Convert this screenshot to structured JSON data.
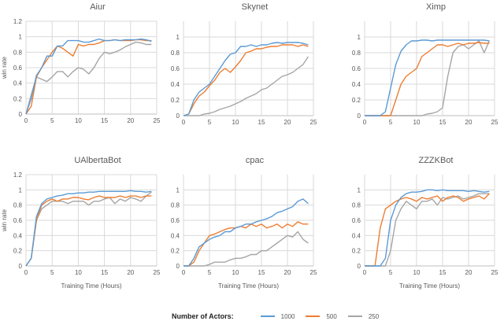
{
  "legend": {
    "title": "Number of Actors:",
    "items": [
      {
        "label": "1000",
        "color": "#5b9bd5"
      },
      {
        "label": "500",
        "color": "#ed7d31"
      },
      {
        "label": "250",
        "color": "#a5a5a5"
      }
    ]
  },
  "chart_data": [
    {
      "type": "line",
      "title": "Aiur",
      "xlabel": "",
      "ylabel": "win rate",
      "xlim": [
        0,
        25
      ],
      "ylim": [
        0,
        1.2
      ],
      "xticks": [
        0,
        5,
        10,
        15,
        20,
        25
      ],
      "yticks": [
        "0",
        "0.2",
        "0.4",
        "0.6",
        "0.8",
        "1",
        "1.2"
      ],
      "x": [
        0,
        1,
        2,
        3,
        4,
        5,
        6,
        7,
        8,
        9,
        10,
        11,
        12,
        13,
        14,
        15,
        16,
        17,
        18,
        19,
        20,
        21,
        22,
        23,
        24
      ],
      "series": [
        {
          "name": "1000",
          "values": [
            0,
            0.2,
            0.5,
            0.6,
            0.75,
            0.75,
            0.88,
            0.88,
            0.95,
            0.95,
            0.95,
            0.93,
            0.93,
            0.95,
            0.97,
            0.95,
            0.95,
            0.96,
            0.95,
            0.96,
            0.96,
            0.96,
            0.97,
            0.96,
            0.94
          ]
        },
        {
          "name": "500",
          "values": [
            0,
            0.1,
            0.48,
            0.6,
            0.7,
            0.8,
            0.88,
            0.85,
            0.8,
            0.75,
            0.9,
            0.88,
            0.9,
            0.9,
            0.92,
            0.95,
            0.95,
            0.96,
            0.95,
            0.95,
            0.95,
            0.96,
            0.96,
            0.95,
            0.95
          ]
        },
        {
          "name": "250",
          "values": [
            0,
            0.25,
            0.48,
            0.45,
            0.42,
            0.48,
            0.55,
            0.55,
            0.48,
            0.55,
            0.6,
            0.58,
            0.52,
            0.6,
            0.72,
            0.8,
            0.78,
            0.8,
            0.83,
            0.87,
            0.9,
            0.93,
            0.92,
            0.9,
            0.9
          ]
        }
      ]
    },
    {
      "type": "line",
      "title": "Skynet",
      "xlabel": "",
      "ylabel": "",
      "xlim": [
        0,
        25
      ],
      "ylim": [
        0,
        1.2
      ],
      "xticks": [
        0,
        5,
        10,
        15,
        20,
        25
      ],
      "yticks": [
        "0",
        "0.2",
        "0.4",
        "0.6",
        "0.8",
        "1"
      ],
      "x": [
        0,
        1,
        2,
        3,
        4,
        5,
        6,
        7,
        8,
        9,
        10,
        11,
        12,
        13,
        14,
        15,
        16,
        17,
        18,
        19,
        20,
        21,
        22,
        23,
        24
      ],
      "series": [
        {
          "name": "1000",
          "values": [
            0,
            0.02,
            0.2,
            0.3,
            0.35,
            0.4,
            0.5,
            0.6,
            0.7,
            0.78,
            0.8,
            0.88,
            0.88,
            0.9,
            0.88,
            0.9,
            0.9,
            0.92,
            0.93,
            0.92,
            0.93,
            0.93,
            0.93,
            0.92,
            0.9
          ]
        },
        {
          "name": "500",
          "values": [
            0,
            0.02,
            0.15,
            0.25,
            0.3,
            0.38,
            0.45,
            0.55,
            0.6,
            0.55,
            0.62,
            0.7,
            0.8,
            0.82,
            0.85,
            0.85,
            0.87,
            0.88,
            0.88,
            0.9,
            0.9,
            0.9,
            0.88,
            0.9,
            0.88
          ]
        },
        {
          "name": "250",
          "values": [
            0,
            0,
            0,
            0,
            0.02,
            0.03,
            0.05,
            0.08,
            0.1,
            0.12,
            0.15,
            0.18,
            0.22,
            0.25,
            0.28,
            0.33,
            0.35,
            0.4,
            0.45,
            0.5,
            0.52,
            0.55,
            0.6,
            0.65,
            0.75
          ]
        }
      ]
    },
    {
      "type": "line",
      "title": "Ximp",
      "xlabel": "",
      "ylabel": "",
      "xlim": [
        0,
        25
      ],
      "ylim": [
        0,
        1.2
      ],
      "xticks": [
        0,
        5,
        10,
        15,
        20,
        25
      ],
      "yticks": [
        "0",
        "0.2",
        "0.4",
        "0.6",
        "0.8",
        "1"
      ],
      "x": [
        0,
        1,
        2,
        3,
        4,
        5,
        6,
        7,
        8,
        9,
        10,
        11,
        12,
        13,
        14,
        15,
        16,
        17,
        18,
        19,
        20,
        21,
        22,
        23,
        24
      ],
      "series": [
        {
          "name": "1000",
          "values": [
            0,
            0,
            0,
            0,
            0.05,
            0.35,
            0.65,
            0.82,
            0.9,
            0.95,
            0.95,
            0.96,
            0.96,
            0.95,
            0.96,
            0.96,
            0.96,
            0.96,
            0.96,
            0.96,
            0.96,
            0.96,
            0.96,
            0.96,
            0.95
          ]
        },
        {
          "name": "500",
          "values": [
            0,
            0,
            0,
            0,
            0,
            0,
            0.2,
            0.4,
            0.5,
            0.55,
            0.6,
            0.75,
            0.8,
            0.85,
            0.9,
            0.9,
            0.88,
            0.9,
            0.92,
            0.9,
            0.92,
            0.92,
            0.93,
            0.92,
            0.92
          ]
        },
        {
          "name": "250",
          "values": [
            0,
            0,
            0,
            0,
            0,
            0,
            0,
            0,
            0,
            0,
            0,
            0,
            0.02,
            0.03,
            0.05,
            0.1,
            0.5,
            0.8,
            0.88,
            0.9,
            0.85,
            0.9,
            0.95,
            0.8,
            0.95
          ]
        }
      ]
    },
    {
      "type": "line",
      "title": "UAlbertaBot",
      "xlabel": "Training Time (Hours)",
      "ylabel": "win rate",
      "xlim": [
        0,
        25
      ],
      "ylim": [
        0,
        1.2
      ],
      "xticks": [
        0,
        5,
        10,
        15,
        20,
        25
      ],
      "yticks": [
        "0",
        "0.2",
        "0.4",
        "0.6",
        "0.8",
        "1",
        "1.2"
      ],
      "x": [
        0,
        1,
        2,
        3,
        4,
        5,
        6,
        7,
        8,
        9,
        10,
        11,
        12,
        13,
        14,
        15,
        16,
        17,
        18,
        19,
        20,
        21,
        22,
        23,
        24
      ],
      "series": [
        {
          "name": "1000",
          "values": [
            0,
            0.1,
            0.65,
            0.82,
            0.88,
            0.9,
            0.92,
            0.93,
            0.95,
            0.95,
            0.96,
            0.96,
            0.97,
            0.97,
            0.98,
            0.98,
            0.98,
            0.98,
            0.98,
            0.98,
            0.99,
            0.98,
            0.98,
            0.97,
            0.98
          ]
        },
        {
          "name": "500",
          "values": [
            0,
            0.1,
            0.6,
            0.8,
            0.85,
            0.88,
            0.85,
            0.88,
            0.88,
            0.9,
            0.9,
            0.88,
            0.87,
            0.9,
            0.92,
            0.9,
            0.9,
            0.9,
            0.92,
            0.9,
            0.92,
            0.92,
            0.9,
            0.92,
            0.92
          ]
        },
        {
          "name": "250",
          "values": [
            0,
            0.1,
            0.6,
            0.75,
            0.8,
            0.85,
            0.85,
            0.85,
            0.82,
            0.85,
            0.85,
            0.85,
            0.8,
            0.85,
            0.85,
            0.88,
            0.9,
            0.82,
            0.88,
            0.85,
            0.9,
            0.88,
            0.85,
            0.92,
            0.97
          ]
        }
      ]
    },
    {
      "type": "line",
      "title": "cpac",
      "xlabel": "Training Time (Hours)",
      "ylabel": "",
      "xlim": [
        0,
        25
      ],
      "ylim": [
        0,
        1.2
      ],
      "xticks": [
        0,
        5,
        10,
        15,
        20,
        25
      ],
      "yticks": [
        "0",
        "0.2",
        "0.4",
        "0.6",
        "0.8",
        "1"
      ],
      "x": [
        0,
        1,
        2,
        3,
        4,
        5,
        6,
        7,
        8,
        9,
        10,
        11,
        12,
        13,
        14,
        15,
        16,
        17,
        18,
        19,
        20,
        21,
        22,
        23,
        24
      ],
      "series": [
        {
          "name": "1000",
          "values": [
            0,
            0,
            0.1,
            0.25,
            0.3,
            0.35,
            0.38,
            0.4,
            0.45,
            0.45,
            0.5,
            0.52,
            0.55,
            0.55,
            0.58,
            0.6,
            0.62,
            0.65,
            0.7,
            0.72,
            0.75,
            0.78,
            0.85,
            0.88,
            0.82
          ]
        },
        {
          "name": "500",
          "values": [
            0,
            0,
            0.05,
            0.2,
            0.3,
            0.4,
            0.42,
            0.45,
            0.48,
            0.5,
            0.5,
            0.52,
            0.5,
            0.55,
            0.52,
            0.55,
            0.5,
            0.52,
            0.55,
            0.5,
            0.55,
            0.52,
            0.58,
            0.55,
            0.55
          ]
        },
        {
          "name": "250",
          "values": [
            0,
            0,
            0,
            0,
            0,
            0.02,
            0.05,
            0.05,
            0.05,
            0.08,
            0.1,
            0.1,
            0.12,
            0.15,
            0.15,
            0.2,
            0.2,
            0.25,
            0.3,
            0.35,
            0.4,
            0.38,
            0.45,
            0.35,
            0.3
          ]
        }
      ]
    },
    {
      "type": "line",
      "title": "ZZZKBot",
      "xlabel": "Training Time (Hours)",
      "ylabel": "",
      "xlim": [
        0,
        25
      ],
      "ylim": [
        0,
        1.2
      ],
      "xticks": [
        0,
        5,
        10,
        15,
        20,
        25
      ],
      "yticks": [
        "0",
        "0.2",
        "0.4",
        "0.6",
        "0.8",
        "1"
      ],
      "x": [
        0,
        1,
        2,
        3,
        4,
        5,
        6,
        7,
        8,
        9,
        10,
        11,
        12,
        13,
        14,
        15,
        16,
        17,
        18,
        19,
        20,
        21,
        22,
        23,
        24
      ],
      "series": [
        {
          "name": "1000",
          "values": [
            0,
            0,
            0,
            0,
            0.1,
            0.6,
            0.8,
            0.9,
            0.95,
            0.97,
            0.97,
            0.98,
            1,
            1,
            0.99,
            1,
            0.99,
            0.99,
            0.99,
            0.99,
            0.98,
            0.99,
            0.98,
            0.97,
            0.98
          ]
        },
        {
          "name": "500",
          "values": [
            0,
            0,
            0,
            0.5,
            0.75,
            0.8,
            0.85,
            0.88,
            0.9,
            0.88,
            0.85,
            0.9,
            0.88,
            0.9,
            0.92,
            0.85,
            0.9,
            0.92,
            0.9,
            0.85,
            0.88,
            0.9,
            0.92,
            0.88,
            0.95
          ]
        },
        {
          "name": "250",
          "values": [
            0,
            0,
            0,
            0,
            0,
            0.2,
            0.6,
            0.75,
            0.85,
            0.8,
            0.75,
            0.85,
            0.85,
            0.88,
            0.8,
            0.9,
            0.88,
            0.9,
            0.92,
            0.88,
            0.9,
            0.92,
            0.95,
            0.95,
            0.95
          ]
        }
      ]
    }
  ]
}
